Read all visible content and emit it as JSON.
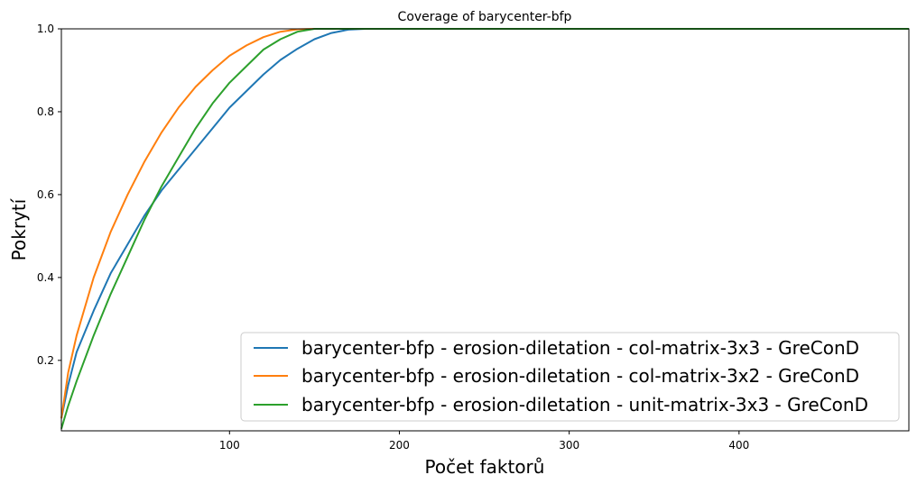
{
  "chart_data": {
    "type": "line",
    "title": "Coverage of barycenter-bfp",
    "xlabel": "Počet faktorů",
    "ylabel": "Pokrytí",
    "xlim": [
      1,
      500
    ],
    "ylim": [
      0.03,
      1.0
    ],
    "xticks": [
      100,
      200,
      300,
      400
    ],
    "yticks": [
      0.2,
      0.4,
      0.6,
      0.8,
      1.0
    ],
    "xtick_labels": [
      "100",
      "200",
      "300",
      "400"
    ],
    "ytick_labels": [
      "0.2",
      "0.4",
      "0.6",
      "0.8",
      "1.0"
    ],
    "grid": false,
    "legend_position": "bottom-right",
    "series": [
      {
        "name": "barycenter-bfp - erosion-diletation - col-matrix-3x3 - GreConD",
        "color": "#1f77b4",
        "x": [
          1,
          5,
          10,
          20,
          30,
          40,
          50,
          60,
          70,
          80,
          90,
          100,
          110,
          120,
          130,
          140,
          150,
          160,
          170,
          180,
          500
        ],
        "y": [
          0.06,
          0.14,
          0.22,
          0.32,
          0.41,
          0.48,
          0.55,
          0.61,
          0.66,
          0.71,
          0.76,
          0.81,
          0.85,
          0.89,
          0.925,
          0.952,
          0.975,
          0.99,
          0.998,
          1.0,
          1.0
        ]
      },
      {
        "name": "barycenter-bfp - erosion-diletation - col-matrix-3x2 - GreConD",
        "color": "#ff7f0e",
        "x": [
          1,
          5,
          10,
          20,
          30,
          40,
          50,
          60,
          70,
          80,
          90,
          100,
          110,
          120,
          130,
          140,
          150,
          500
        ],
        "y": [
          0.06,
          0.17,
          0.26,
          0.4,
          0.51,
          0.6,
          0.68,
          0.75,
          0.81,
          0.86,
          0.9,
          0.935,
          0.96,
          0.98,
          0.993,
          0.999,
          1.0,
          1.0
        ]
      },
      {
        "name": "barycenter-bfp - erosion-diletation - unit-matrix-3x3 - GreConD",
        "color": "#2ca02c",
        "x": [
          1,
          5,
          10,
          20,
          30,
          40,
          50,
          60,
          70,
          80,
          90,
          100,
          110,
          120,
          130,
          140,
          150,
          500
        ],
        "y": [
          0.035,
          0.09,
          0.15,
          0.26,
          0.36,
          0.45,
          0.54,
          0.62,
          0.69,
          0.76,
          0.82,
          0.87,
          0.91,
          0.95,
          0.975,
          0.993,
          1.0,
          1.0
        ]
      }
    ]
  }
}
